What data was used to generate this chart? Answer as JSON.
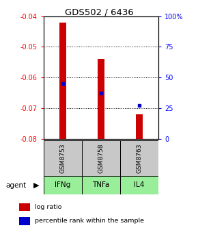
{
  "title": "GDS502 / 6436",
  "samples": [
    "GSM8753",
    "GSM8758",
    "GSM8763"
  ],
  "agents": [
    "IFNg",
    "TNFa",
    "IL4"
  ],
  "bar_bottoms": [
    -0.08,
    -0.08,
    -0.08
  ],
  "bar_tops": [
    -0.042,
    -0.054,
    -0.072
  ],
  "percentile_values": [
    -0.062,
    -0.065,
    -0.069
  ],
  "ylim": [
    -0.08,
    -0.04
  ],
  "yticks_left": [
    -0.08,
    -0.07,
    -0.06,
    -0.05,
    -0.04
  ],
  "yticks_right_pct": [
    0,
    25,
    50,
    75,
    100
  ],
  "yticks_right_labels": [
    "0",
    "25",
    "50",
    "75",
    "100%"
  ],
  "bar_color": "#cc0000",
  "percentile_color": "#0000cc",
  "sample_bg": "#c8c8c8",
  "agent_bg_color": "#99ee99",
  "legend_items": [
    "log ratio",
    "percentile rank within the sample"
  ]
}
